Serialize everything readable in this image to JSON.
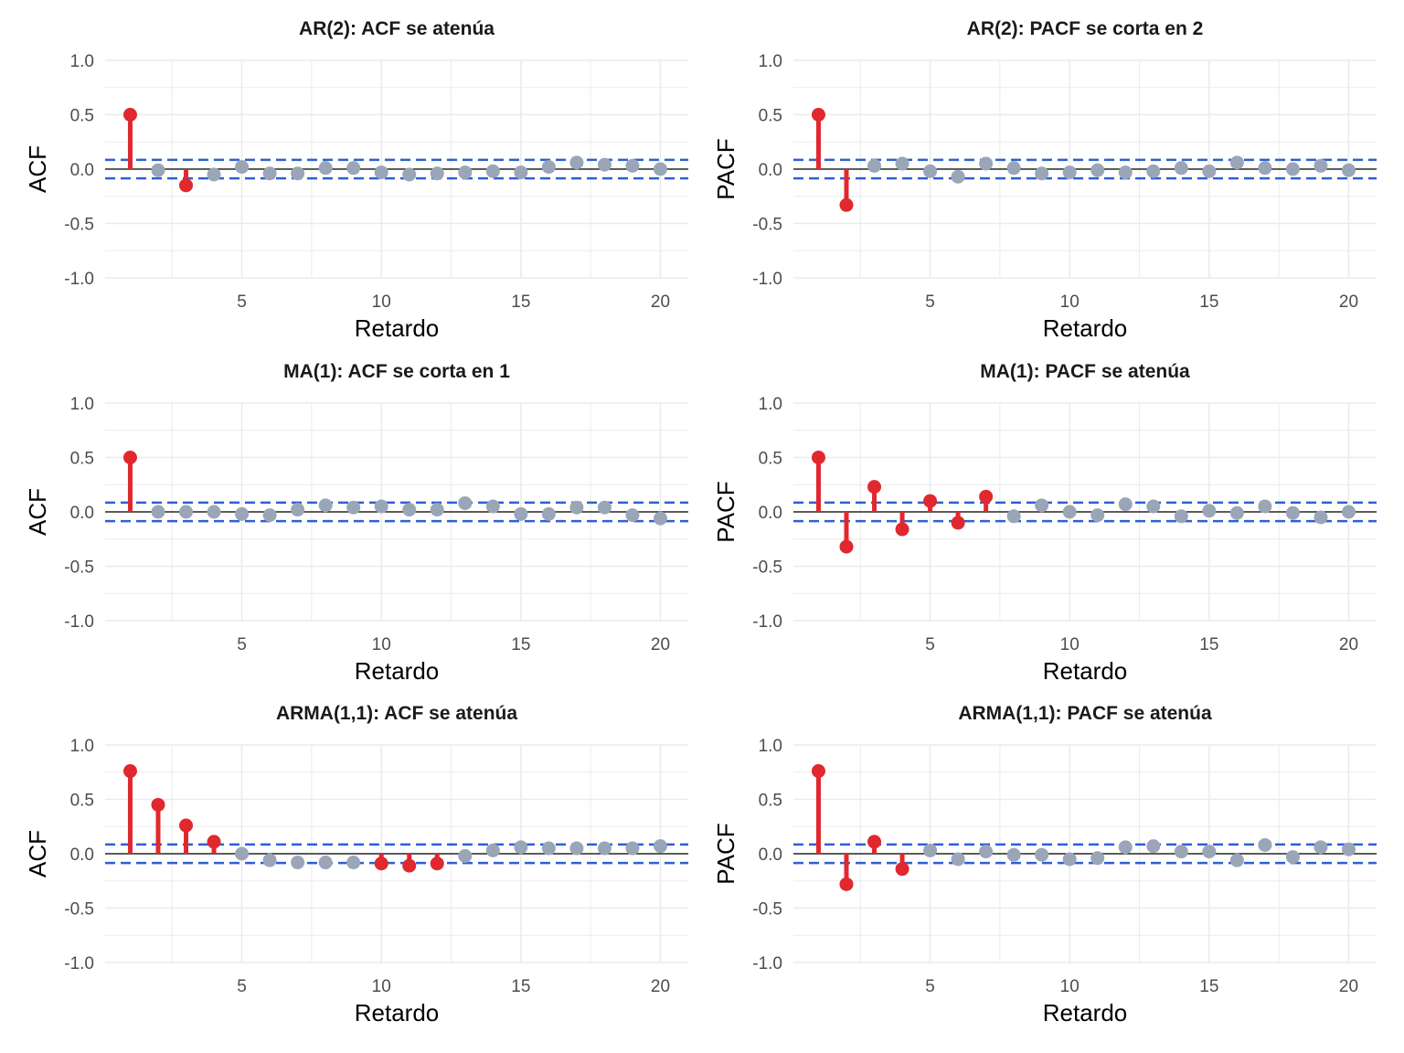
{
  "colors": {
    "significant": "#e0282e",
    "non_significant": "#9aa6b8",
    "confidence_band": "#2d5fd6",
    "zero_line": "#000000",
    "grid": "#ebebeb"
  },
  "chart_data": [
    {
      "type": "scatter",
      "title": "AR(2): ACF se atenúa",
      "xlabel": "Retardo",
      "ylabel": "ACF",
      "xlim": [
        0.1,
        21.0
      ],
      "ylim": [
        -1.0,
        1.0
      ],
      "xticks": [
        "5",
        "10",
        "15",
        "20"
      ],
      "yticks": [
        "1.0",
        "0.5",
        "0.0",
        "-0.5",
        "-1.0"
      ],
      "confidence_bound": 0.085,
      "x": [
        1,
        2,
        3,
        4,
        5,
        6,
        7,
        8,
        9,
        10,
        11,
        12,
        13,
        14,
        15,
        16,
        17,
        18,
        19,
        20
      ],
      "y": [
        0.5,
        -0.01,
        -0.15,
        -0.05,
        0.02,
        -0.04,
        -0.04,
        0.01,
        0.01,
        -0.03,
        -0.05,
        -0.04,
        -0.03,
        -0.02,
        -0.03,
        0.02,
        0.06,
        0.04,
        0.03,
        0.0
      ]
    },
    {
      "type": "scatter",
      "title": "AR(2): PACF se corta en 2",
      "xlabel": "Retardo",
      "ylabel": "PACF",
      "xlim": [
        0.1,
        21.0
      ],
      "ylim": [
        -1.0,
        1.0
      ],
      "xticks": [
        "5",
        "10",
        "15",
        "20"
      ],
      "yticks": [
        "1.0",
        "0.5",
        "0.0",
        "-0.5",
        "-1.0"
      ],
      "confidence_bound": 0.085,
      "x": [
        1,
        2,
        3,
        4,
        5,
        6,
        7,
        8,
        9,
        10,
        11,
        12,
        13,
        14,
        15,
        16,
        17,
        18,
        19,
        20
      ],
      "y": [
        0.5,
        -0.33,
        0.03,
        0.05,
        -0.02,
        -0.07,
        0.05,
        0.01,
        -0.04,
        -0.03,
        -0.01,
        -0.03,
        -0.02,
        0.01,
        -0.02,
        0.06,
        0.01,
        0.0,
        0.03,
        -0.01
      ]
    },
    {
      "type": "scatter",
      "title": "MA(1): ACF se corta en 1",
      "xlabel": "Retardo",
      "ylabel": "ACF",
      "xlim": [
        0.1,
        21.0
      ],
      "ylim": [
        -1.0,
        1.0
      ],
      "xticks": [
        "5",
        "10",
        "15",
        "20"
      ],
      "yticks": [
        "1.0",
        "0.5",
        "0.0",
        "-0.5",
        "-1.0"
      ],
      "confidence_bound": 0.085,
      "x": [
        1,
        2,
        3,
        4,
        5,
        6,
        7,
        8,
        9,
        10,
        11,
        12,
        13,
        14,
        15,
        16,
        17,
        18,
        19,
        20
      ],
      "y": [
        0.5,
        0.0,
        0.0,
        0.0,
        -0.02,
        -0.03,
        0.02,
        0.06,
        0.04,
        0.05,
        0.02,
        0.02,
        0.08,
        0.05,
        -0.02,
        -0.02,
        0.04,
        0.04,
        -0.03,
        -0.06
      ]
    },
    {
      "type": "scatter",
      "title": "MA(1): PACF se atenúa",
      "xlabel": "Retardo",
      "ylabel": "PACF",
      "xlim": [
        0.1,
        21.0
      ],
      "ylim": [
        -1.0,
        1.0
      ],
      "xticks": [
        "5",
        "10",
        "15",
        "20"
      ],
      "yticks": [
        "1.0",
        "0.5",
        "0.0",
        "-0.5",
        "-1.0"
      ],
      "confidence_bound": 0.085,
      "x": [
        1,
        2,
        3,
        4,
        5,
        6,
        7,
        8,
        9,
        10,
        11,
        12,
        13,
        14,
        15,
        16,
        17,
        18,
        19,
        20
      ],
      "y": [
        0.5,
        -0.32,
        0.23,
        -0.16,
        0.1,
        -0.1,
        0.14,
        -0.04,
        0.06,
        0.0,
        -0.03,
        0.07,
        0.05,
        -0.04,
        0.01,
        -0.01,
        0.05,
        -0.01,
        -0.05,
        0.0
      ]
    },
    {
      "type": "scatter",
      "title": "ARMA(1,1): ACF se atenúa",
      "xlabel": "Retardo",
      "ylabel": "ACF",
      "xlim": [
        0.1,
        21.0
      ],
      "ylim": [
        -1.0,
        1.0
      ],
      "xticks": [
        "5",
        "10",
        "15",
        "20"
      ],
      "yticks": [
        "1.0",
        "0.5",
        "0.0",
        "-0.5",
        "-1.0"
      ],
      "confidence_bound": 0.085,
      "x": [
        1,
        2,
        3,
        4,
        5,
        6,
        7,
        8,
        9,
        10,
        11,
        12,
        13,
        14,
        15,
        16,
        17,
        18,
        19,
        20
      ],
      "y": [
        0.76,
        0.45,
        0.26,
        0.11,
        0.0,
        -0.06,
        -0.08,
        -0.08,
        -0.08,
        -0.09,
        -0.11,
        -0.09,
        -0.02,
        0.03,
        0.06,
        0.05,
        0.05,
        0.05,
        0.05,
        0.07
      ]
    },
    {
      "type": "scatter",
      "title": "ARMA(1,1): PACF se atenúa",
      "xlabel": "Retardo",
      "ylabel": "PACF",
      "xlim": [
        0.1,
        21.0
      ],
      "ylim": [
        -1.0,
        1.0
      ],
      "xticks": [
        "5",
        "10",
        "15",
        "20"
      ],
      "yticks": [
        "1.0",
        "0.5",
        "0.0",
        "-0.5",
        "-1.0"
      ],
      "confidence_bound": 0.085,
      "x": [
        1,
        2,
        3,
        4,
        5,
        6,
        7,
        8,
        9,
        10,
        11,
        12,
        13,
        14,
        15,
        16,
        17,
        18,
        19,
        20
      ],
      "y": [
        0.76,
        -0.28,
        0.11,
        -0.14,
        0.03,
        -0.05,
        0.02,
        -0.01,
        -0.01,
        -0.05,
        -0.04,
        0.06,
        0.07,
        0.02,
        0.02,
        -0.06,
        0.08,
        -0.03,
        0.06,
        0.04
      ]
    }
  ]
}
